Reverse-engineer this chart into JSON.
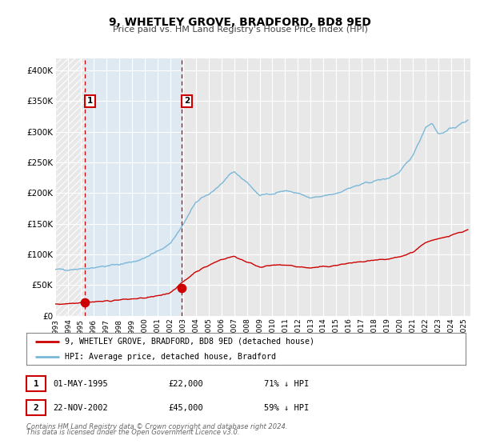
{
  "title": "9, WHETLEY GROVE, BRADFORD, BD8 9ED",
  "subtitle": "Price paid vs. HM Land Registry's House Price Index (HPI)",
  "xlim": [
    1993.0,
    2025.5
  ],
  "ylim": [
    0,
    420000
  ],
  "yticks": [
    0,
    50000,
    100000,
    150000,
    200000,
    250000,
    300000,
    350000,
    400000
  ],
  "ytick_labels": [
    "£0",
    "£50K",
    "£100K",
    "£150K",
    "£200K",
    "£250K",
    "£300K",
    "£350K",
    "£400K"
  ],
  "xticks": [
    1993,
    1994,
    1995,
    1996,
    1997,
    1998,
    1999,
    2000,
    2001,
    2002,
    2003,
    2004,
    2005,
    2006,
    2007,
    2008,
    2009,
    2010,
    2011,
    2012,
    2013,
    2014,
    2015,
    2016,
    2017,
    2018,
    2019,
    2020,
    2021,
    2022,
    2023,
    2024,
    2025
  ],
  "purchase1_x": 1995.33,
  "purchase1_y": 22000,
  "purchase2_x": 2002.9,
  "purchase2_y": 45000,
  "vline1_x": 1995.33,
  "vline2_x": 2002.9,
  "hpi_color": "#7ab8d9",
  "price_color": "#cc0000",
  "vline_color": "#cc0000",
  "shade_color": "#dbeaf5",
  "legend_label_price": "9, WHETLEY GROVE, BRADFORD, BD8 9ED (detached house)",
  "legend_label_hpi": "HPI: Average price, detached house, Bradford",
  "table_row1": [
    "1",
    "01-MAY-1995",
    "£22,000",
    "71% ↓ HPI"
  ],
  "table_row2": [
    "2",
    "22-NOV-2002",
    "£45,000",
    "59% ↓ HPI"
  ],
  "footer_line1": "Contains HM Land Registry data © Crown copyright and database right 2024.",
  "footer_line2": "This data is licensed under the Open Government Licence v3.0.",
  "background_color": "#ffffff",
  "plot_bg_color": "#e8e8e8"
}
